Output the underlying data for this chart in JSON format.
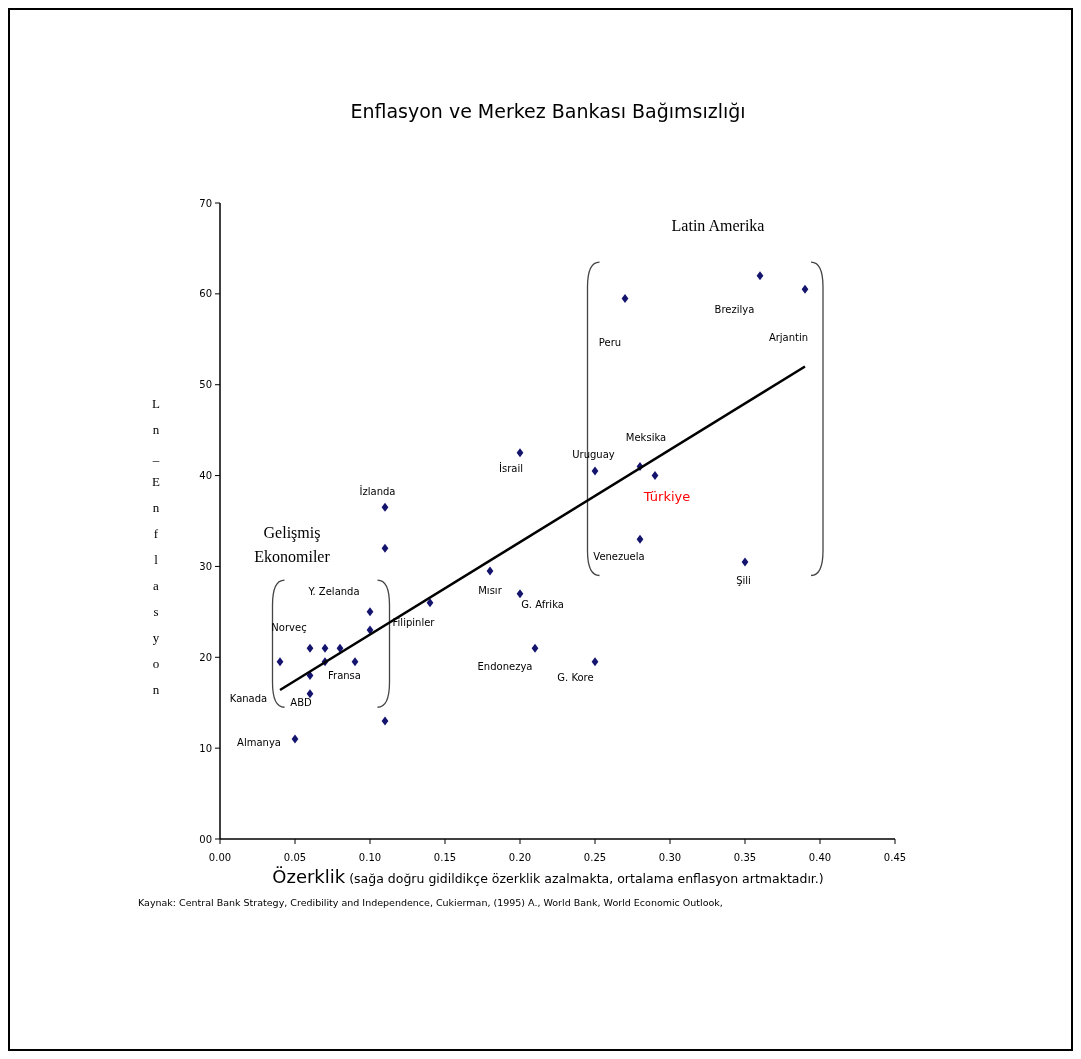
{
  "chart_data": {
    "type": "scatter",
    "title": "Enflasyon ve Merkez Bankası Bağımsızlığı",
    "xlabel": "Özerklik (sağa doğru gidildikçe özerklik azalmakta, ortalama enflasyon artmaktadır.)",
    "ylabel": "Ln_Enflasyon",
    "xlim": [
      0,
      0.45
    ],
    "ylim": [
      0,
      70
    ],
    "xticks": [
      {
        "value": 0,
        "label": "0.00"
      },
      {
        "value": 0.05,
        "label": "0.05"
      },
      {
        "value": 0.1,
        "label": "0.10"
      },
      {
        "value": 0.15,
        "label": "0.15"
      },
      {
        "value": 0.2,
        "label": "0.20"
      },
      {
        "value": 0.25,
        "label": "0.25"
      },
      {
        "value": 0.3,
        "label": "0.30"
      },
      {
        "value": 0.35,
        "label": "0.35"
      },
      {
        "value": 0.4,
        "label": "0.40"
      },
      {
        "value": 0.45,
        "label": "0.45"
      }
    ],
    "yticks": [
      {
        "value": 0,
        "label": "00"
      },
      10,
      20,
      30,
      40,
      50,
      60,
      70
    ],
    "series": [
      {
        "color": "#14146e",
        "marker": "diamond",
        "x": [
          0.04,
          0.06,
          0.06,
          0.06,
          0.07,
          0.07,
          0.08,
          0.09,
          0.1,
          0.1,
          0.11,
          0.11,
          0.11,
          0.14,
          0.05,
          0.27,
          0.36,
          0.39,
          0.2,
          0.25,
          0.28,
          0.29,
          0.28,
          0.35,
          0.18,
          0.2,
          0.21,
          0.25
        ],
        "values": [
          19.5,
          21,
          18,
          16,
          21,
          19.5,
          21,
          19.5,
          25,
          23,
          36.5,
          32,
          13,
          26,
          11,
          59.5,
          62,
          60.5,
          42.5,
          40.5,
          41,
          40,
          33,
          30.5,
          29.5,
          27,
          21,
          19.5
        ]
      },
      {
        "type": "line",
        "color": "#000000",
        "x": [
          0.04,
          0.39
        ],
        "values": [
          16.4,
          52
        ]
      }
    ],
    "annotations": [
      "Kanada",
      "ABD",
      "Norveç",
      "Fransa",
      "Y. Zelanda",
      "İzlanda",
      "Filipinler",
      "Almanya",
      "Gelişmiş\nEkonomiler",
      "Latin Amerika",
      "Peru",
      "Brezilya",
      "Arjantin",
      "Meksika",
      "Uruguay",
      "İsrail",
      "Türkiye",
      "Venezuela",
      "Şili",
      "Mısır",
      "G. Afrika",
      "Endonezya",
      "G. Kore",
      "Kaynak: Central Bank Strategy, Credibility and Independence, Cukierman, (1995) A., World Bank, World Economic Outlook,"
    ]
  }
}
